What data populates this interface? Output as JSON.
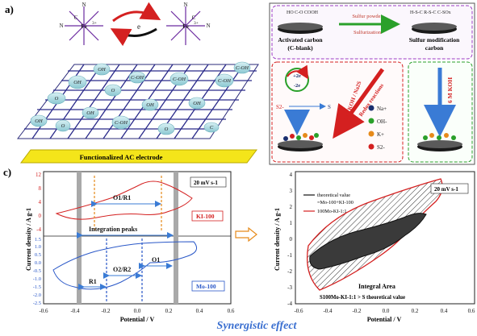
{
  "panel_a": {
    "label": "a)",
    "electron": "e",
    "fe_label": "Fe",
    "fe_charge": "3+",
    "n_label": "N",
    "c_label": "C",
    "oh": "OH",
    "o": "O",
    "cooh": "C-OH",
    "co": "C",
    "base_label": "Functionalized AC electrode"
  },
  "panel_b": {
    "label": "b)",
    "carbon_groups": "HO  C-O COOH",
    "activated_carbon": "Activated carbon",
    "c_blank": "(C-blank)",
    "sulfur_powder": "Sulfur powder",
    "sulfurization": "Sulfurization",
    "sulfur_groups": "H-S-C  R-S-C  C-SOx",
    "sulfur_mod_1": "Sulfur modification",
    "sulfur_mod_2": "carbon",
    "redox_label": "Redox reactions",
    "koh_na2s": "6 M KOH / Na2S",
    "koh": "6 M KOH",
    "plus2e": "+2e",
    "minus2e": "-2e",
    "s2minus": "S2-",
    "s_label": "S",
    "legend": [
      "Na+",
      "OH-",
      "K+",
      "S2-"
    ],
    "legend_colors": [
      "#1a2e6e",
      "#2aa02a",
      "#e68a1a",
      "#d42020"
    ]
  },
  "panel_c": {
    "label": "c)",
    "scan_rate": "20 mV s-1",
    "scan_rate_right": "20 mV s-1",
    "ylabel": "Current density / A g-1",
    "xlabel": "Potential / V",
    "ki_label": "KI-100",
    "mo_label": "Mo-100",
    "o1r1": "O1/R1",
    "integration": "Integration peaks",
    "o2r2": "O2/R2",
    "o1": "O1",
    "r1": "R1",
    "top_yticks": [
      "12",
      "8",
      "4",
      "0",
      "-4"
    ],
    "bottom_yticks": [
      "1.5",
      "1.0",
      "0.5",
      "0.0",
      "-0.5",
      "-1.0",
      "-1.5",
      "-2.0",
      "-2.5"
    ],
    "xticks": [
      "-0.6",
      "-0.4",
      "-0.2",
      "0.0",
      "0.2",
      "0.4",
      "0.6"
    ],
    "right_yticks": [
      "4",
      "3",
      "2",
      "1",
      "0",
      "-1",
      "-2",
      "-3",
      "-4"
    ],
    "legend_theory_1": "theoretical value",
    "legend_theory_2": "=Mo-100+KI-100",
    "legend_measured": "100Mo-KI-1:1",
    "integral_area": "Integral Area",
    "integral_eq": "S100Mo-KI-1:1 > S theoretical value",
    "synergy": "Synergistic effect"
  }
}
